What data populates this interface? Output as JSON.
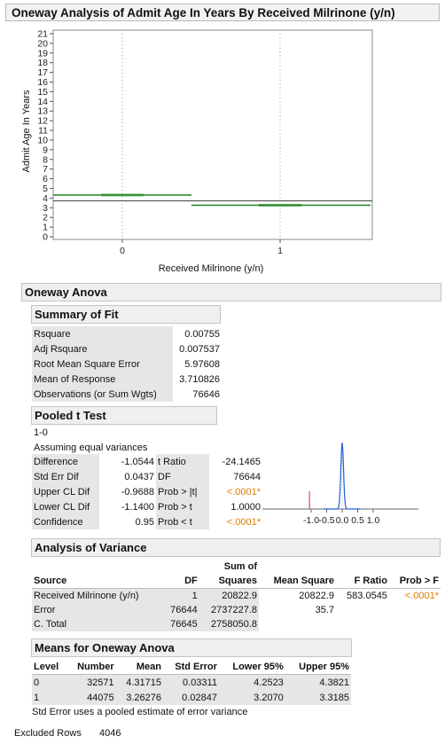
{
  "report_title": "Oneway Analysis of Admit Age In Years By Received Milrinone (y/n)",
  "plot": {
    "y_axis_label": "Admit Age In Years",
    "x_axis_label": "Received Milrinone (y/n)",
    "y_ticks": [
      "21",
      "20",
      "19",
      "18",
      "17",
      "16",
      "15",
      "14",
      "13",
      "12",
      "11",
      "10",
      "9",
      "8",
      "7",
      "6",
      "5",
      "4",
      "3",
      "2",
      "1",
      "0"
    ],
    "x_ticks": [
      "0",
      "1"
    ],
    "grand_mean": 3.710826,
    "group_means": [
      4.31715,
      3.26276
    ],
    "mean_line_color": "#2e8b2e"
  },
  "chart_data": {
    "type": "scatter",
    "categories": [
      "0",
      "1"
    ],
    "xlabel": "Received Milrinone (y/n)",
    "ylabel": "Admit Age In Years",
    "ylim": [
      0,
      21
    ],
    "means": [
      4.31715,
      3.26276
    ],
    "grand_mean": 3.710826
  },
  "oneway_anova": {
    "header": "Oneway Anova",
    "summary_of_fit": {
      "header": "Summary of Fit",
      "rows": [
        {
          "label": "Rsquare",
          "value": "0.00755"
        },
        {
          "label": "Adj Rsquare",
          "value": "0.007537"
        },
        {
          "label": "Root Mean Square Error",
          "value": "5.97608"
        },
        {
          "label": "Mean of Response",
          "value": "3.710826"
        },
        {
          "label": "Observations (or Sum Wgts)",
          "value": "76646"
        }
      ]
    },
    "pooled_t": {
      "header": "Pooled t Test",
      "contrast": "1-0",
      "note": "Assuming equal variances",
      "rows": [
        {
          "l1": "Difference",
          "v1": "-1.0544",
          "l2": "t Ratio",
          "v2": "-24.1465"
        },
        {
          "l1": "Std Err Dif",
          "v1": "0.0437",
          "l2": "DF",
          "v2": "76644"
        },
        {
          "l1": "Upper CL Dif",
          "v1": "-0.9688",
          "l2": "Prob > |t|",
          "v2": "<.0001*"
        },
        {
          "l1": "Lower CL Dif",
          "v1": "-1.1400",
          "l2": "Prob > t",
          "v2": "1.0000"
        },
        {
          "l1": "Confidence",
          "v1": "0.95",
          "l2": "Prob < t",
          "v2": "<.0001*"
        }
      ],
      "mini_axis_ticks": [
        "-1.0",
        "-0.5",
        "0.0",
        "0.5",
        "1.0"
      ],
      "observed_t": -24.1465
    },
    "anova": {
      "header": "Analysis of Variance",
      "col_sum_of": "Sum of",
      "columns": [
        "Source",
        "DF",
        "Squares",
        "Mean Square",
        "F Ratio",
        "Prob > F"
      ],
      "rows": [
        {
          "source": "Received Milrinone (y/n)",
          "df": "1",
          "ss": "20822.9",
          "ms": "20822.9",
          "f": "583.0545",
          "p": "<.0001*"
        },
        {
          "source": "Error",
          "df": "76644",
          "ss": "2737227.8",
          "ms": "35.7",
          "f": "",
          "p": ""
        },
        {
          "source": "C. Total",
          "df": "76645",
          "ss": "2758050.8",
          "ms": "",
          "f": "",
          "p": ""
        }
      ]
    },
    "means": {
      "header": "Means for Oneway Anova",
      "columns": [
        "Level",
        "Number",
        "Mean",
        "Std Error",
        "Lower 95%",
        "Upper 95%"
      ],
      "rows": [
        {
          "level": "0",
          "number": "32571",
          "mean": "4.31715",
          "se": "0.03311",
          "lo": "4.2523",
          "hi": "4.3821"
        },
        {
          "level": "1",
          "number": "44075",
          "mean": "3.26276",
          "se": "0.02847",
          "lo": "3.2070",
          "hi": "3.3185"
        }
      ],
      "footnote": "Std Error uses a pooled estimate of error variance"
    }
  },
  "excluded_rows": {
    "label": "Excluded Rows",
    "value": "4046"
  },
  "colors": {
    "significant": "#e07b00",
    "density_curve": "#1f5fd6",
    "observed_marker": "#cc2255"
  }
}
